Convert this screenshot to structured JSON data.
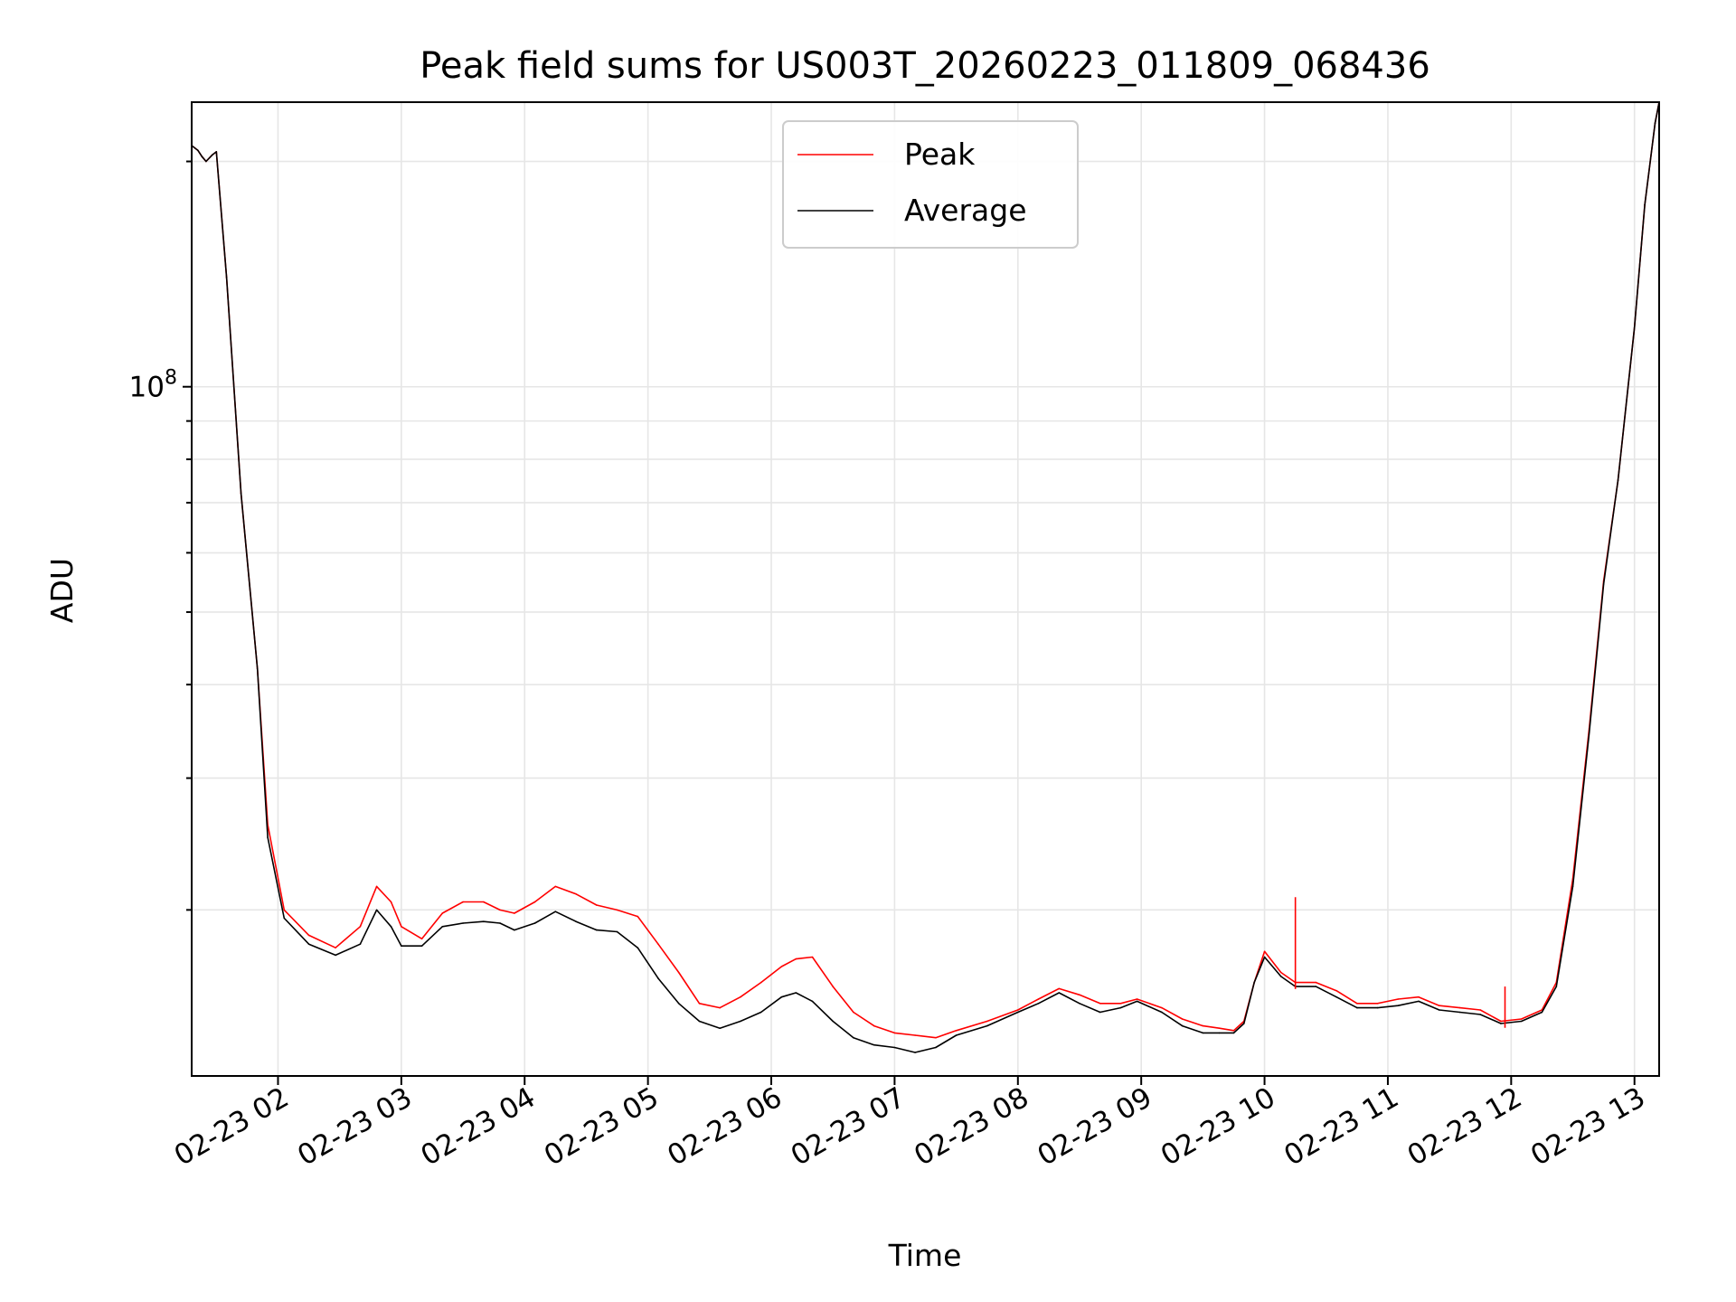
{
  "chart_data": {
    "type": "line",
    "title": "Peak field sums for US003T_20260223_011809_068436",
    "xlabel": "Time",
    "ylabel": "ADU",
    "yscale": "log",
    "ylim": [
      12000000,
      240000000
    ],
    "xlim": [
      "02-23 01:18",
      "02-23 13:12"
    ],
    "grid": true,
    "legend": {
      "placement": "top-center",
      "entries": [
        "Peak",
        "Average"
      ]
    },
    "x_tick_labels": [
      "02-23 02",
      "02-23 03",
      "02-23 04",
      "02-23 05",
      "02-23 06",
      "02-23 07",
      "02-23 08",
      "02-23 09",
      "02-23 10",
      "02-23 11",
      "02-23 12",
      "02-23 13"
    ],
    "y_tick_labels": [
      {
        "base": "10",
        "exp": "8"
      }
    ],
    "x": [
      "02-23 01:18",
      "02-23 01:21",
      "02-23 01:23",
      "02-23 01:25",
      "02-23 01:28",
      "02-23 01:30",
      "02-23 01:35",
      "02-23 01:42",
      "02-23 01:50",
      "02-23 01:55",
      "02-23 02:03",
      "02-23 02:15",
      "02-23 02:28",
      "02-23 02:40",
      "02-23 02:48",
      "02-23 02:55",
      "02-23 03:00",
      "02-23 03:10",
      "02-23 03:20",
      "02-23 03:30",
      "02-23 03:40",
      "02-23 03:48",
      "02-23 03:55",
      "02-23 04:05",
      "02-23 04:15",
      "02-23 04:25",
      "02-23 04:35",
      "02-23 04:45",
      "02-23 04:55",
      "02-23 05:05",
      "02-23 05:15",
      "02-23 05:25",
      "02-23 05:35",
      "02-23 05:45",
      "02-23 05:55",
      "02-23 06:05",
      "02-23 06:12",
      "02-23 06:20",
      "02-23 06:30",
      "02-23 06:40",
      "02-23 06:50",
      "02-23 07:00",
      "02-23 07:10",
      "02-23 07:20",
      "02-23 07:30",
      "02-23 07:45",
      "02-23 08:00",
      "02-23 08:10",
      "02-23 08:20",
      "02-23 08:30",
      "02-23 08:40",
      "02-23 08:50",
      "02-23 08:58",
      "02-23 09:10",
      "02-23 09:20",
      "02-23 09:30",
      "02-23 09:38",
      "02-23 09:45",
      "02-23 09:50",
      "02-23 09:55",
      "02-23 10:00",
      "02-23 10:08",
      "02-23 10:15",
      "02-23 10:25",
      "02-23 10:35",
      "02-23 10:45",
      "02-23 10:55",
      "02-23 11:05",
      "02-23 11:15",
      "02-23 11:25",
      "02-23 11:35",
      "02-23 11:45",
      "02-23 11:55",
      "02-23 12:05",
      "02-23 12:15",
      "02-23 12:22",
      "02-23 12:30",
      "02-23 12:38",
      "02-23 12:45",
      "02-23 12:52",
      "02-23 13:00",
      "02-23 13:05",
      "02-23 13:10",
      "02-23 13:12"
    ],
    "series": [
      {
        "name": "Peak",
        "color": "#ff0000",
        "values": [
          210000000,
          207000000,
          203000000,
          200000000,
          204000000,
          206000000,
          140000000,
          72000000,
          42000000,
          26000000,
          20000000,
          18500000,
          17800000,
          19000000,
          21500000,
          20500000,
          19000000,
          18300000,
          19800000,
          20500000,
          20500000,
          20000000,
          19800000,
          20500000,
          21500000,
          21000000,
          20300000,
          20000000,
          19600000,
          18000000,
          16500000,
          15000000,
          14800000,
          15300000,
          16000000,
          16800000,
          17200000,
          17300000,
          15800000,
          14600000,
          14000000,
          13700000,
          13600000,
          13500000,
          13800000,
          14200000,
          14700000,
          15200000,
          15700000,
          15400000,
          15000000,
          15000000,
          15200000,
          14800000,
          14300000,
          14000000,
          13900000,
          13800000,
          14200000,
          16000000,
          17600000,
          16500000,
          16000000,
          16000000,
          15600000,
          15000000,
          15000000,
          15200000,
          15300000,
          14900000,
          14800000,
          14700000,
          14200000,
          14300000,
          14700000,
          16000000,
          22000000,
          35000000,
          55000000,
          75000000,
          120000000,
          175000000,
          225000000,
          240000000
        ]
      },
      {
        "name": "Average",
        "color": "#000000",
        "values": [
          210000000,
          207000000,
          203000000,
          200000000,
          204000000,
          206000000,
          140000000,
          72000000,
          42000000,
          25000000,
          19500000,
          18000000,
          17400000,
          18000000,
          20000000,
          19000000,
          17900000,
          17900000,
          19000000,
          19200000,
          19300000,
          19200000,
          18800000,
          19200000,
          19900000,
          19300000,
          18800000,
          18700000,
          17800000,
          16200000,
          15000000,
          14200000,
          13900000,
          14200000,
          14600000,
          15300000,
          15500000,
          15100000,
          14200000,
          13500000,
          13200000,
          13100000,
          12900000,
          13100000,
          13600000,
          14000000,
          14600000,
          15000000,
          15500000,
          15000000,
          14600000,
          14800000,
          15100000,
          14600000,
          14000000,
          13700000,
          13700000,
          13700000,
          14100000,
          16000000,
          17300000,
          16300000,
          15800000,
          15800000,
          15300000,
          14800000,
          14800000,
          14900000,
          15100000,
          14700000,
          14600000,
          14500000,
          14100000,
          14200000,
          14600000,
          15800000,
          21500000,
          34500000,
          54500000,
          75000000,
          120000000,
          175000000,
          225000000,
          240000000
        ]
      }
    ],
    "annotations": [
      {
        "series": "Peak",
        "x": "02-23 10:15",
        "y": 20800000,
        "kind": "spike"
      },
      {
        "series": "Peak",
        "x": "02-23 11:57",
        "y": 15800000,
        "kind": "spike"
      }
    ]
  }
}
